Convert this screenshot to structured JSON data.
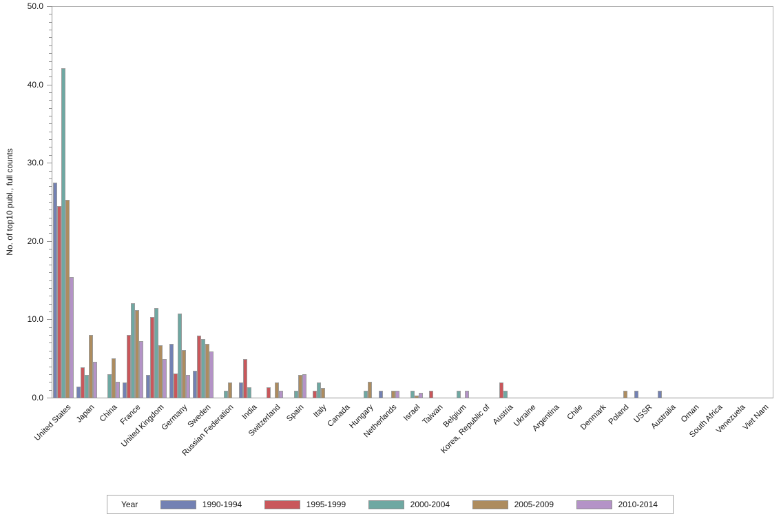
{
  "chart_data": {
    "type": "bar",
    "title": "",
    "xlabel": "",
    "ylabel": "No. of top10 publ., full counts",
    "ylim": [
      0,
      50
    ],
    "ytick_interval": 10,
    "yminor_tick_interval": 1,
    "ytick_labels": [
      "0.0",
      "10.0",
      "20.0",
      "30.0",
      "40.0",
      "50.0"
    ],
    "grid": false,
    "legend_title": "Year",
    "legend_position": "bottom",
    "bar_outline_color": "#9c9c9c",
    "categories": [
      "United States",
      "Japan",
      "China",
      "France",
      "United Kingdom",
      "Germany",
      "Sweden",
      "Russian Federation",
      "India",
      "Switzerland",
      "Spain",
      "Italy",
      "Canada",
      "Hungary",
      "Netherlands",
      "Israel",
      "Taiwan",
      "Belgium",
      "Korea, Republic of",
      "Austria",
      "Ukraine",
      "Argentina",
      "Chile",
      "Denmark",
      "Poland",
      "USSR",
      "Australia",
      "Oman",
      "South Africa",
      "Venezuela",
      "Viet Nam"
    ],
    "series": [
      {
        "name": "1990-1994",
        "color": "#7381b3",
        "values": [
          27.5,
          1.4,
          0,
          1.9,
          2.9,
          6.9,
          3.4,
          0,
          1.9,
          0,
          0,
          0,
          0,
          0,
          0.9,
          0,
          0,
          0,
          0,
          0,
          0,
          0,
          0,
          0,
          0,
          0.9,
          0.9,
          0,
          0,
          0,
          0
        ]
      },
      {
        "name": "1995-1999",
        "color": "#c9575b",
        "values": [
          24.5,
          3.9,
          0,
          8.0,
          10.3,
          3.1,
          7.9,
          0,
          4.9,
          1.3,
          0,
          0.9,
          0,
          0,
          0,
          0,
          0.9,
          0,
          0,
          1.9,
          0,
          0,
          0,
          0,
          0,
          0,
          0,
          0,
          0,
          0,
          0
        ]
      },
      {
        "name": "2000-2004",
        "color": "#6fa8a2",
        "values": [
          42.1,
          2.9,
          3.0,
          12.1,
          11.4,
          10.7,
          7.5,
          0.9,
          1.3,
          0,
          0.9,
          1.9,
          0,
          0.9,
          0,
          0.9,
          0,
          0.9,
          0,
          0.9,
          0,
          0,
          0,
          0,
          0,
          0,
          0,
          0,
          0,
          0,
          0
        ]
      },
      {
        "name": "2005-2009",
        "color": "#ad8c5f",
        "values": [
          25.3,
          8.0,
          5.0,
          11.2,
          6.7,
          6.1,
          6.9,
          1.9,
          0,
          1.9,
          2.9,
          1.2,
          0,
          2.0,
          0.9,
          0.25,
          0,
          0,
          0,
          0,
          0,
          0,
          0,
          0,
          0.9,
          0,
          0,
          0,
          0,
          0,
          0
        ]
      },
      {
        "name": "2010-2014",
        "color": "#b493c7",
        "values": [
          15.4,
          4.6,
          2.0,
          7.2,
          4.9,
          2.9,
          5.9,
          0,
          0,
          0.9,
          3.0,
          0,
          0,
          0,
          0.9,
          0.6,
          0,
          0.9,
          0,
          0,
          0,
          0,
          0,
          0,
          0,
          0,
          0,
          0,
          0,
          0,
          0
        ]
      }
    ]
  }
}
